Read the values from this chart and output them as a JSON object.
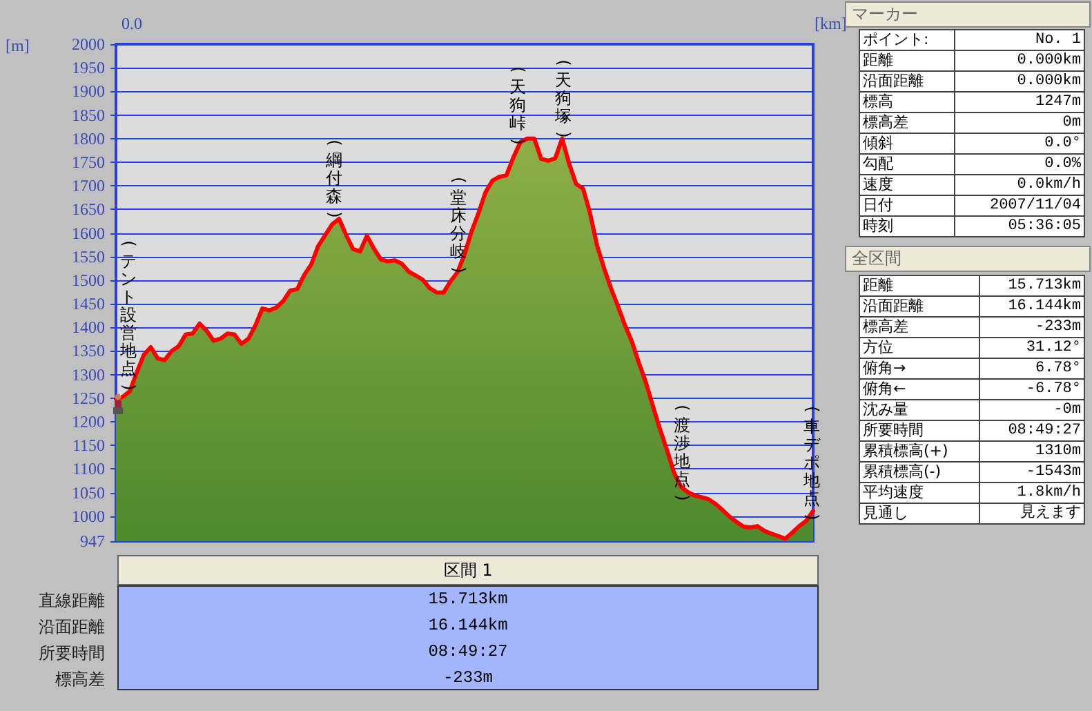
{
  "chart_data": [
    {
      "type": "area",
      "xlabel": "[km]",
      "ylabel": "[m]",
      "categories": [
        null,
        null,
        null,
        null,
        null,
        null,
        null,
        null,
        null,
        null,
        null,
        null,
        null,
        null,
        null,
        null,
        null,
        null,
        null,
        null,
        null,
        null,
        null,
        null,
        null,
        null,
        null,
        null,
        null,
        null,
        null,
        null,
        null,
        null,
        null,
        null,
        null,
        null,
        null,
        null,
        null,
        null,
        null,
        null,
        null,
        null,
        null,
        null,
        null,
        null,
        null,
        null,
        null,
        null,
        null,
        null,
        null,
        null,
        null,
        null,
        null,
        null,
        null,
        null,
        null,
        null,
        null,
        null,
        null,
        null,
        null,
        null,
        null,
        null,
        null,
        null,
        null,
        null,
        null,
        null,
        null,
        null,
        null,
        null,
        null,
        null,
        null,
        null,
        null,
        null,
        null,
        null,
        null,
        null,
        null,
        null,
        null,
        null,
        null,
        null,
        null
      ],
      "series": [
        {
          "color": "#ff0000",
          "values": [
            1248,
            1253,
            1265,
            1305,
            1342,
            1358,
            1334,
            1331,
            1350,
            1360,
            1385,
            1387,
            1408,
            1393,
            1372,
            1376,
            1387,
            1385,
            1365,
            1376,
            1404,
            1440,
            1436,
            1442,
            1456,
            1478,
            1481,
            1511,
            1533,
            1572,
            1595,
            1618,
            1630,
            1596,
            1566,
            1561,
            1594,
            1567,
            1544,
            1540,
            1542,
            1535,
            1518,
            1510,
            1501,
            1483,
            1474,
            1474,
            1498,
            1517,
            1555,
            1603,
            1642,
            1686,
            1711,
            1719,
            1722,
            1760,
            1792,
            1800,
            1800,
            1757,
            1753,
            1758,
            1800,
            1747,
            1704,
            1694,
            1642,
            1574,
            1526,
            1483,
            1445,
            1405,
            1370,
            1325,
            1284,
            1234,
            1186,
            1142,
            1094,
            1063,
            1051,
            1044,
            1040,
            1036,
            1026,
            1013,
            999,
            988,
            978,
            976,
            979,
            969,
            963,
            958,
            952,
            965,
            979,
            990,
            1011
          ]
        }
      ],
      "ylim": [
        947,
        2000
      ],
      "yticks": [
        947,
        1000,
        1050,
        1100,
        1150,
        1200,
        1250,
        1300,
        1350,
        1400,
        1450,
        1500,
        1550,
        1600,
        1650,
        1700,
        1750,
        1800,
        1850,
        1900,
        1950,
        2000
      ],
      "grid": "y",
      "annotations": [
        "0.0",
        "(テント設営地点)",
        "(綱付森)",
        "(堂床分岐)",
        "(天狗峠)",
        "(天狗塚)",
        "(渡渉地点)",
        "(車デポ地点)"
      ]
    },
    {
      "type": "other",
      "title": "マーカー",
      "annotations": [
        "ポイント:",
        "No. 1",
        "距離",
        "0.000km",
        "沿面距離",
        "0.000km",
        "標高",
        "1247m",
        "標高差",
        "0m",
        "傾斜",
        "0.0°",
        "勾配",
        "0.0%",
        "速度",
        "0.0km/h",
        "日付",
        "2007/11/04",
        "時刻",
        "05:36:05"
      ]
    },
    {
      "type": "other",
      "title": "全区間",
      "annotations": [
        "距離",
        "15.713km",
        "沿面距離",
        "16.144km",
        "標高差",
        "-233m",
        "方位",
        "31.12°",
        "俯角→",
        "6.78°",
        "俯角←",
        "-6.78°",
        "沈み量",
        "-0m",
        "所要時間",
        "08:49:27",
        "累積標高(+)",
        "1310m",
        "累積標高(-)",
        "-1543m",
        "平均速度",
        "1.8km/h",
        "見通し",
        "見えます"
      ]
    },
    {
      "type": "other",
      "title": "区間 1",
      "annotations": [
        "直線距離",
        "15.713km",
        "沿面距離",
        "16.144km",
        "所要時間",
        "08:49:27",
        "標高差",
        "-233m"
      ]
    }
  ]
}
